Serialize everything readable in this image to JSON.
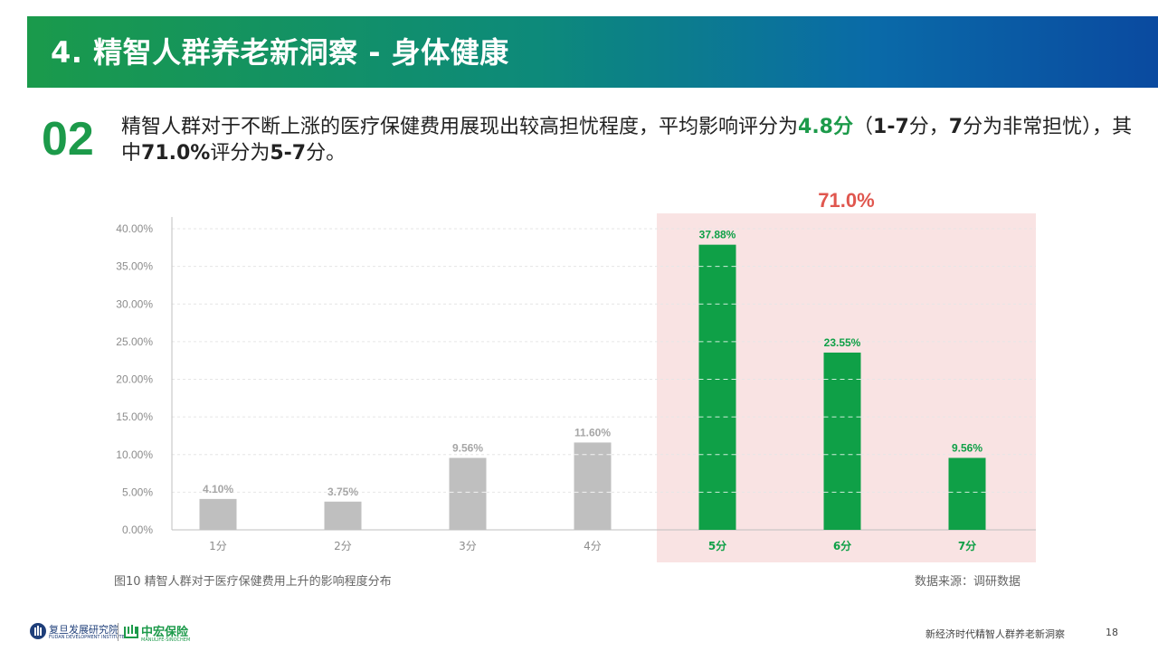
{
  "header": {
    "title": "4. 精智人群养老新洞察 - 身体健康"
  },
  "section": {
    "number": "02",
    "text_1": "精智人群对于不断上涨的医疗保健费用展现出较高担忧程度，平均影响评分为",
    "avg_score": "4.8分",
    "text_2": "（",
    "scale": "1-7",
    "text_3": "分，",
    "scale_max": "7",
    "text_4": "分为非常担忧），其中",
    "share": "71.0%",
    "text_5": "评分为",
    "range": "5-7",
    "text_6": "分。"
  },
  "chart_data": {
    "type": "bar",
    "categories": [
      "1分",
      "2分",
      "3分",
      "4分",
      "5分",
      "6分",
      "7分"
    ],
    "values": [
      4.1,
      3.75,
      9.56,
      11.6,
      37.88,
      23.55,
      9.56
    ],
    "value_labels": [
      "4.10%",
      "3.75%",
      "9.56%",
      "11.60%",
      "37.88%",
      "23.55%",
      "9.56%"
    ],
    "yticks": [
      "0.00%",
      "5.00%",
      "10.00%",
      "15.00%",
      "20.00%",
      "25.00%",
      "30.00%",
      "35.00%",
      "40.00%"
    ],
    "ylim": [
      0,
      40
    ],
    "grid": true,
    "highlight": {
      "label": "71.0%",
      "from_category": "5分",
      "to_category": "7分"
    },
    "colors": {
      "normal": "#bfbfbf",
      "highlight": "#0fa047",
      "highlight_band": "#f9e3e3",
      "highlight_label": "#e0574f",
      "normal_label": "#a6a6a6"
    }
  },
  "caption": {
    "left": "图10  精智人群对于医疗保健费用上升的影响程度分布",
    "right": "数据来源：调研数据"
  },
  "footer": {
    "logo1_text": "复旦发展研究院",
    "logo1_sub": "FUDAN DEVELOPMENT INSTITUTE",
    "logo2_text": "中宏保险",
    "logo2_sub": "MANULIFE-SINOCHEM",
    "report_title": "新经济时代精智人群养老新洞察",
    "page": "18"
  }
}
